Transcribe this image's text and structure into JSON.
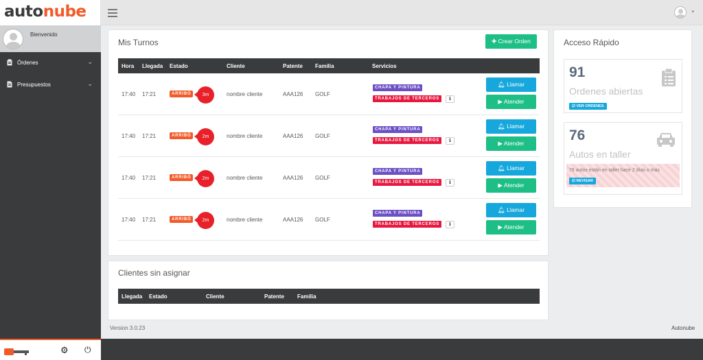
{
  "brand": {
    "part1": "auto",
    "part2": "nube"
  },
  "user_panel": {
    "welcome": "Bienvenido"
  },
  "sidebar": {
    "items": [
      {
        "label": "Órdenes",
        "icon": "clipboard-icon"
      },
      {
        "label": "Presupuestos",
        "icon": "document-icon"
      }
    ]
  },
  "turnos": {
    "title": "Mis Turnos",
    "create_label": "Crear Orden",
    "columns": [
      "Hora",
      "Llegada",
      "Estado",
      "Cliente",
      "Patente",
      "Familia",
      "Servicios"
    ],
    "rows": [
      {
        "hora": "17:40",
        "llegada": "17:21",
        "estado": "ARRIBÓ",
        "tiempo": "3m",
        "cliente": "nombre cliente",
        "patente": "AAA126",
        "familia": "GOLF",
        "servicio1": "CHAPA Y PINTURA",
        "servicio2": "TRABAJOS DE TERCEROS",
        "llamar": "Llamar",
        "atender": "Atender"
      },
      {
        "hora": "17:40",
        "llegada": "17:21",
        "estado": "ARRIBÓ",
        "tiempo": "2m",
        "cliente": "nombre cliente",
        "patente": "AAA126",
        "familia": "GOLF",
        "servicio1": "CHAPA Y PINTURA",
        "servicio2": "TRABAJOS DE TERCEROS",
        "llamar": "Llamar",
        "atender": "Atender"
      },
      {
        "hora": "17:40",
        "llegada": "17:21",
        "estado": "ARRIBÓ",
        "tiempo": "2m",
        "cliente": "nombre cliente",
        "patente": "AAA126",
        "familia": "GOLF",
        "servicio1": "CHAPA Y PINTURA",
        "servicio2": "TRABAJOS DE TERCEROS",
        "llamar": "Llamar",
        "atender": "Atender"
      },
      {
        "hora": "17:40",
        "llegada": "17:21",
        "estado": "ARRIBÓ",
        "tiempo": "2m",
        "cliente": "nombre cliente",
        "patente": "AAA126",
        "familia": "GOLF",
        "servicio1": "CHAPA Y PINTURA",
        "servicio2": "TRABAJOS DE TERCEROS",
        "llamar": "Llamar",
        "atender": "Atender"
      }
    ]
  },
  "sin_asignar": {
    "title": "Clientes sin asignar",
    "columns": [
      "Llegada",
      "Estado",
      "Cliente",
      "Patente",
      "Familia"
    ]
  },
  "acceso": {
    "title": "Acceso Rápido",
    "ordenes": {
      "count": "91",
      "label": "Ordenes abiertas",
      "link": "VER ORDENES"
    },
    "autos": {
      "count": "76",
      "label": "Autos en taller",
      "warning": "76 autos están en taller hace 2 días o más",
      "link": "REVISAR"
    }
  },
  "footer": {
    "version": "Version 3.0.23",
    "brand": "Autonube"
  },
  "colors": {
    "accent": "#f25a29",
    "sidebar": "#3a3b3d",
    "info": "#16a7dc",
    "success": "#1dbf86"
  }
}
